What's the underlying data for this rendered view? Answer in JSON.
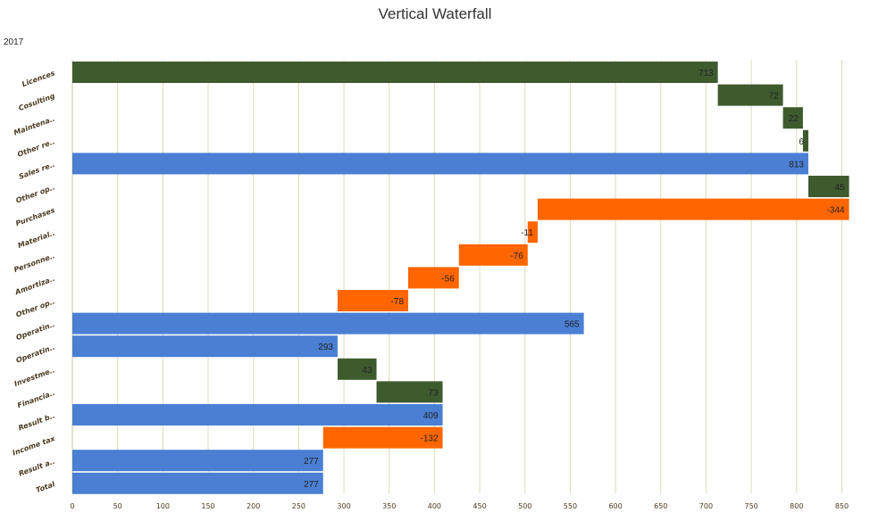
{
  "chart_data": {
    "type": "bar",
    "orientation": "horizontal",
    "title": "Vertical Waterfall",
    "subtitle": "2017",
    "xlim": [
      0,
      855
    ],
    "xticks": [
      0,
      50,
      100,
      150,
      200,
      250,
      300,
      350,
      400,
      450,
      500,
      550,
      600,
      650,
      700,
      750,
      800,
      850
    ],
    "grid": true,
    "legend": "none",
    "colors": {
      "increase": "#3e5b2e",
      "decrease": "#ff6600",
      "total": "#4a7fd4",
      "grid": "#dcdcb8",
      "axis": "#c8c8a0"
    },
    "items": [
      {
        "label": "Licences",
        "value": 713,
        "start": 0,
        "kind": "increase"
      },
      {
        "label": "Cosulting",
        "value": 72,
        "start": 713,
        "kind": "increase"
      },
      {
        "label": "Maintena..",
        "value": 22,
        "start": 785,
        "kind": "increase"
      },
      {
        "label": "Other re..",
        "value": 6,
        "start": 807,
        "kind": "increase"
      },
      {
        "label": "Sales re..",
        "value": 813,
        "start": 0,
        "kind": "total"
      },
      {
        "label": "Other op..",
        "value": 45,
        "start": 813,
        "kind": "increase"
      },
      {
        "label": "Purchases",
        "value": -344,
        "start": 858,
        "kind": "decrease"
      },
      {
        "label": "Material..",
        "value": -11,
        "start": 514,
        "kind": "decrease"
      },
      {
        "label": "Personne..",
        "value": -76,
        "start": 503,
        "kind": "decrease"
      },
      {
        "label": "Amortiza..",
        "value": -56,
        "start": 427,
        "kind": "decrease"
      },
      {
        "label": "Other op..",
        "value": -78,
        "start": 371,
        "kind": "decrease"
      },
      {
        "label": "Operatin..",
        "value": 565,
        "start": 0,
        "kind": "total"
      },
      {
        "label": "Operatin..",
        "value": 293,
        "start": 0,
        "kind": "total"
      },
      {
        "label": "Investme..",
        "value": 43,
        "start": 293,
        "kind": "increase"
      },
      {
        "label": "Financia..",
        "value": 73,
        "start": 336,
        "kind": "increase"
      },
      {
        "label": "Result b..",
        "value": 409,
        "start": 0,
        "kind": "total"
      },
      {
        "label": "Income tax",
        "value": -132,
        "start": 409,
        "kind": "decrease"
      },
      {
        "label": "Result a..",
        "value": 277,
        "start": 0,
        "kind": "total"
      },
      {
        "label": "Total",
        "value": 277,
        "start": 0,
        "kind": "total"
      }
    ]
  }
}
